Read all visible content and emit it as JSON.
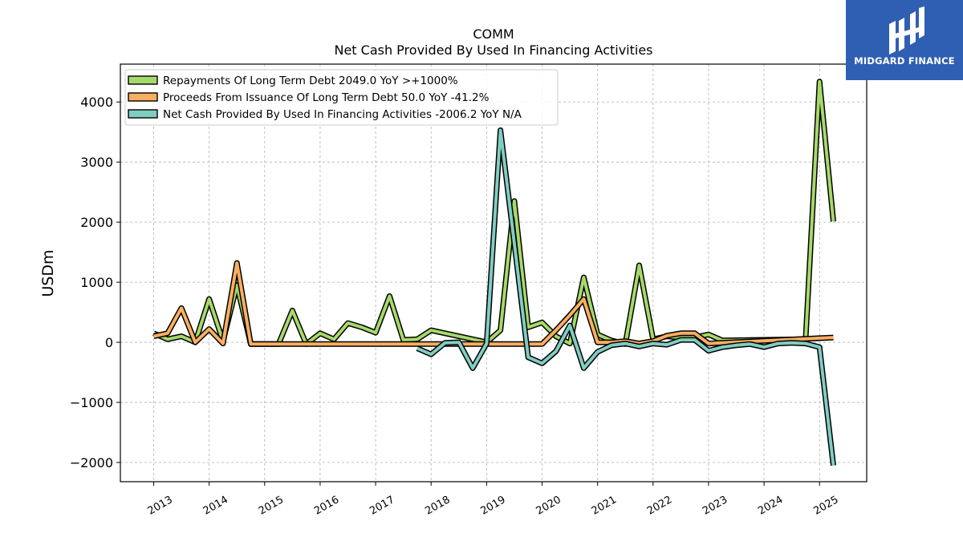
{
  "chart_data": {
    "type": "line",
    "title": "COMM",
    "subtitle": "Net Cash Provided By Used In Financing Activities",
    "xlabel": "",
    "ylabel": "USDm",
    "x_ticks": [
      "2013",
      "2014",
      "2015",
      "2016",
      "2017",
      "2018",
      "2019",
      "2020",
      "2021",
      "2022",
      "2023",
      "2024",
      "2025"
    ],
    "y_ticks": [
      4000,
      3000,
      2000,
      1000,
      0,
      -1000,
      -2000
    ],
    "y_tick_labels": [
      "4000",
      "3000",
      "2000",
      "1000",
      "0",
      "−1000",
      "−2000"
    ],
    "xlim": [
      2012.4,
      2025.85
    ],
    "ylim": [
      -2320,
      4630
    ],
    "grid": true,
    "legend_position": "top-left",
    "series": [
      {
        "name": "Repayments Of Long Term Debt  2049.0 YoY >+1000%",
        "color": "#a6d96a",
        "x": [
          2013.0,
          2013.25,
          2013.5,
          2013.75,
          2014.0,
          2014.25,
          2014.5,
          2014.75,
          2015.0,
          2015.25,
          2015.5,
          2015.75,
          2016.0,
          2016.25,
          2016.5,
          2016.75,
          2017.0,
          2017.25,
          2017.5,
          2017.75,
          2018.0,
          2018.25,
          2018.5,
          2018.75,
          2019.0,
          2019.25,
          2019.5,
          2019.75,
          2020.0,
          2020.25,
          2020.5,
          2020.75,
          2021.0,
          2021.25,
          2021.5,
          2021.75,
          2022.0,
          2022.25,
          2022.5,
          2022.75,
          2023.0,
          2023.25,
          2024.75,
          2025.0,
          2025.25
        ],
        "y": [
          150,
          50,
          100,
          0,
          720,
          20,
          950,
          -30,
          -30,
          -30,
          530,
          -30,
          150,
          50,
          320,
          250,
          160,
          770,
          40,
          50,
          200,
          150,
          100,
          50,
          0,
          200,
          2350,
          250,
          330,
          100,
          -20,
          1080,
          130,
          30,
          -30,
          1280,
          50,
          100,
          80,
          80,
          130,
          30,
          50,
          4340,
          2010
        ]
      },
      {
        "name": "Proceeds From Issuance Of Long Term Debt  50.0 YoY -41.2%",
        "color": "#fdae61",
        "x": [
          2013.0,
          2013.25,
          2013.5,
          2013.75,
          2014.0,
          2014.25,
          2014.5,
          2014.75,
          2015.0,
          2015.25,
          2015.5,
          2015.75,
          2016.0,
          2016.25,
          2016.5,
          2016.75,
          2017.0,
          2017.25,
          2017.5,
          2017.75,
          2018.0,
          2018.25,
          2018.5,
          2018.75,
          2019.0,
          2019.25,
          2019.5,
          2019.75,
          2020.0,
          2020.25,
          2020.5,
          2020.75,
          2021.0,
          2021.25,
          2021.5,
          2021.75,
          2022.0,
          2022.25,
          2022.5,
          2022.75,
          2023.0,
          2025.25
        ],
        "y": [
          100,
          150,
          570,
          0,
          220,
          -20,
          1320,
          -30,
          -30,
          -30,
          -30,
          -30,
          -30,
          -30,
          -30,
          -30,
          -30,
          -30,
          -30,
          -30,
          -30,
          -30,
          -30,
          -30,
          -30,
          -30,
          -30,
          -30,
          -30,
          200,
          450,
          720,
          0,
          0,
          20,
          -20,
          20,
          110,
          150,
          150,
          -20,
          80
        ]
      },
      {
        "name": "Net Cash Provided By Used In Financing Activities  -2006.2 YoY N/A",
        "color": "#80cdc1",
        "x": [
          2017.75,
          2018.0,
          2018.25,
          2018.5,
          2018.75,
          2019.0,
          2019.25,
          2019.5,
          2019.75,
          2020.0,
          2020.25,
          2020.5,
          2020.75,
          2021.0,
          2021.25,
          2021.5,
          2021.75,
          2022.0,
          2022.25,
          2022.5,
          2022.75,
          2023.0,
          2023.25,
          2023.5,
          2023.75,
          2024.0,
          2024.25,
          2024.5,
          2024.75,
          2025.0,
          2025.25
        ],
        "y": [
          -100,
          -200,
          -10,
          0,
          -430,
          -20,
          3530,
          1650,
          -250,
          -350,
          -150,
          280,
          -430,
          -160,
          -50,
          -20,
          -70,
          -20,
          -40,
          40,
          40,
          -140,
          -80,
          -50,
          -30,
          -80,
          -20,
          -10,
          -20,
          -80,
          -2050
        ]
      }
    ]
  },
  "logo": {
    "text": "MIDGARD FINANCE",
    "color": "#2f5fb3"
  }
}
